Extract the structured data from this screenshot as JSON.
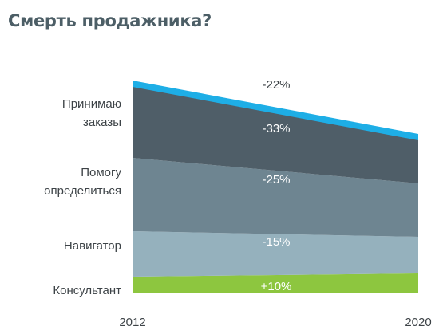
{
  "title": "Смерть продажника?",
  "chart_data": {
    "type": "area",
    "stacked": true,
    "x": [
      "2012",
      "2020"
    ],
    "series": [
      {
        "name": "Консультант",
        "change": "+10%",
        "color": "#8dc63f"
      },
      {
        "name": "Навигатор",
        "change": "-15%",
        "color": "#95b1bd"
      },
      {
        "name": "Помогу определиться",
        "change": "-25%",
        "color": "#6e8591"
      },
      {
        "name": "Принимаю заказы",
        "change": "-33%",
        "color": "#4f5e68"
      }
    ],
    "total": {
      "change": "-22%",
      "color": "#1eaee6"
    },
    "text_colors": {
      "light": "#ffffff",
      "dark": "#3d4347"
    },
    "label_lines": [
      [
        "Консультант"
      ],
      [
        "Навигатор"
      ],
      [
        "Помогу",
        "определиться"
      ],
      [
        "Принимаю",
        "заказы"
      ]
    ],
    "ticks": [
      "2012",
      "2020"
    ],
    "grid": false,
    "legend": "left"
  }
}
